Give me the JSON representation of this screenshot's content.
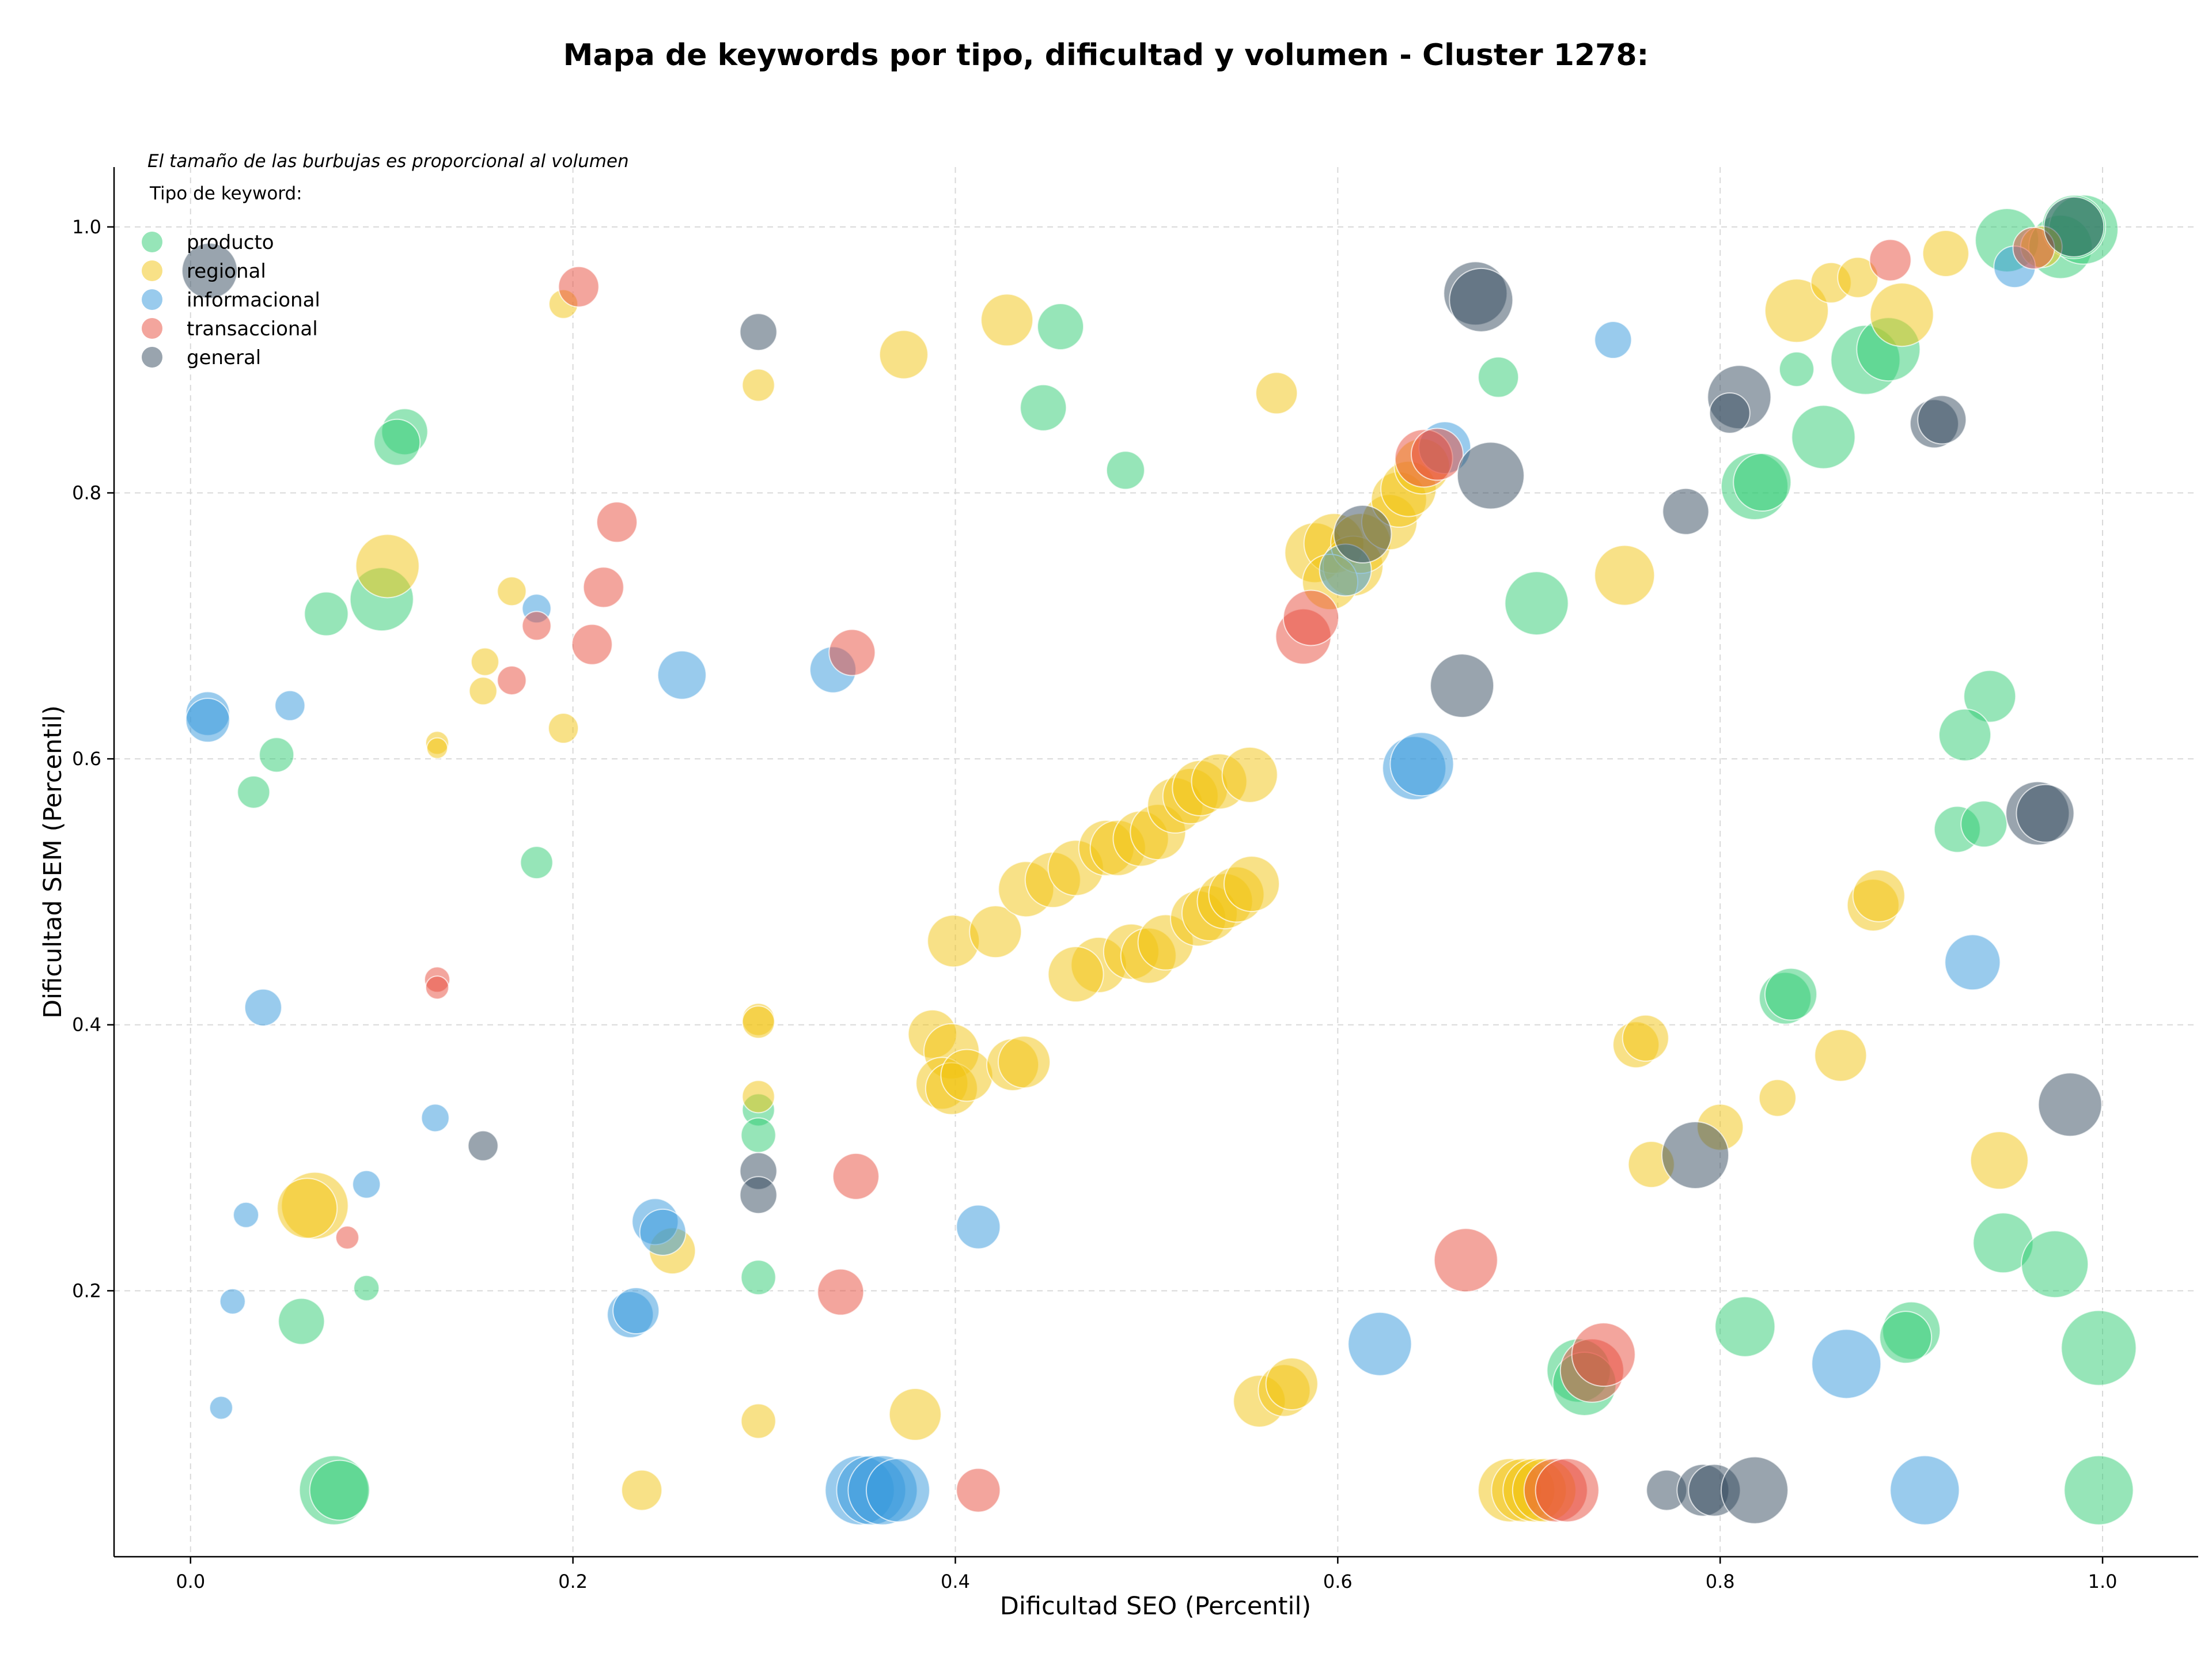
{
  "chart_data": {
    "type": "scatter",
    "title": "Mapa de keywords por tipo, dificultad y volumen - Cluster 1278:",
    "xlabel": "Dificultad SEO (Percentil)",
    "ylabel": "Dificultad SEM (Percentil)",
    "xlim": [
      -0.04,
      1.05
    ],
    "ylim": [
      0.0,
      1.045
    ],
    "xticks": [
      "0.0",
      "0.2",
      "0.4",
      "0.6",
      "0.8",
      "1.0"
    ],
    "yticks": [
      "0.2",
      "0.4",
      "0.6",
      "0.8",
      "1.0"
    ],
    "grid": true,
    "size_note": "El tamaño de las burbujas es proporcional al volumen",
    "legend_title": "Tipo de keyword:",
    "legend_position": "top-left",
    "series": [
      {
        "name": "producto",
        "color": "#2ecc71",
        "points": [
          [
            0.112,
            0.846,
            40
          ],
          [
            0.108,
            0.838,
            40
          ],
          [
            0.071,
            0.709,
            38
          ],
          [
            0.1,
            0.72,
            55
          ],
          [
            0.045,
            0.603,
            30
          ],
          [
            0.033,
            0.575,
            28
          ],
          [
            0.181,
            0.522,
            28
          ],
          [
            0.092,
            0.202,
            22
          ],
          [
            0.058,
            0.177,
            40
          ],
          [
            0.075,
            0.05,
            60
          ],
          [
            0.078,
            0.05,
            52
          ],
          [
            0.455,
            0.925,
            40
          ],
          [
            0.446,
            0.864,
            40
          ],
          [
            0.489,
            0.817,
            33
          ],
          [
            0.297,
            0.336,
            28
          ],
          [
            0.297,
            0.317,
            30
          ],
          [
            0.297,
            0.21,
            30
          ],
          [
            0.684,
            0.887,
            35
          ],
          [
            0.704,
            0.717,
            55
          ],
          [
            0.818,
            0.805,
            58
          ],
          [
            0.822,
            0.808,
            50
          ],
          [
            0.854,
            0.842,
            55
          ],
          [
            0.84,
            0.893,
            30
          ],
          [
            0.876,
            0.9,
            60
          ],
          [
            0.888,
            0.908,
            55
          ],
          [
            0.95,
            0.99,
            55
          ],
          [
            0.978,
            0.985,
            55
          ],
          [
            0.99,
            0.998,
            60
          ],
          [
            0.985,
            1.0,
            55
          ],
          [
            0.941,
            0.647,
            45
          ],
          [
            0.928,
            0.618,
            45
          ],
          [
            0.924,
            0.547,
            40
          ],
          [
            0.938,
            0.551,
            40
          ],
          [
            0.834,
            0.42,
            45
          ],
          [
            0.837,
            0.423,
            45
          ],
          [
            0.948,
            0.236,
            52
          ],
          [
            0.975,
            0.22,
            58
          ],
          [
            0.998,
            0.157,
            65
          ],
          [
            0.813,
            0.173,
            52
          ],
          [
            0.9,
            0.17,
            50
          ],
          [
            0.897,
            0.165,
            45
          ],
          [
            0.726,
            0.14,
            55
          ],
          [
            0.729,
            0.13,
            55
          ],
          [
            0.998,
            0.05,
            60
          ]
        ]
      },
      {
        "name": "regional",
        "color": "#f1c40f",
        "points": [
          [
            0.195,
            0.942,
            25
          ],
          [
            0.103,
            0.745,
            55
          ],
          [
            0.168,
            0.726,
            25
          ],
          [
            0.154,
            0.673,
            24
          ],
          [
            0.153,
            0.651,
            24
          ],
          [
            0.195,
            0.623,
            26
          ],
          [
            0.129,
            0.612,
            20
          ],
          [
            0.129,
            0.608,
            18
          ],
          [
            0.065,
            0.264,
            58
          ],
          [
            0.061,
            0.262,
            52
          ],
          [
            0.252,
            0.23,
            40
          ],
          [
            0.236,
            0.05,
            35
          ],
          [
            0.297,
            0.881,
            28
          ],
          [
            0.297,
            0.404,
            28
          ],
          [
            0.297,
            0.402,
            28
          ],
          [
            0.297,
            0.346,
            28
          ],
          [
            0.297,
            0.102,
            30
          ],
          [
            0.373,
            0.904,
            42
          ],
          [
            0.427,
            0.93,
            45
          ],
          [
            0.379,
            0.107,
            45
          ],
          [
            0.568,
            0.875,
            36
          ],
          [
            0.399,
            0.463,
            45
          ],
          [
            0.421,
            0.47,
            45
          ],
          [
            0.437,
            0.502,
            48
          ],
          [
            0.451,
            0.509,
            48
          ],
          [
            0.463,
            0.518,
            48
          ],
          [
            0.479,
            0.533,
            48
          ],
          [
            0.485,
            0.533,
            48
          ],
          [
            0.497,
            0.54,
            48
          ],
          [
            0.506,
            0.545,
            48
          ],
          [
            0.515,
            0.565,
            48
          ],
          [
            0.523,
            0.572,
            48
          ],
          [
            0.528,
            0.578,
            48
          ],
          [
            0.538,
            0.583,
            48
          ],
          [
            0.554,
            0.588,
            48
          ],
          [
            0.475,
            0.445,
            48
          ],
          [
            0.463,
            0.438,
            48
          ],
          [
            0.492,
            0.455,
            48
          ],
          [
            0.501,
            0.452,
            48
          ],
          [
            0.51,
            0.462,
            48
          ],
          [
            0.527,
            0.48,
            48
          ],
          [
            0.533,
            0.484,
            48
          ],
          [
            0.541,
            0.493,
            48
          ],
          [
            0.547,
            0.498,
            48
          ],
          [
            0.555,
            0.506,
            48
          ],
          [
            0.388,
            0.393,
            42
          ],
          [
            0.398,
            0.38,
            48
          ],
          [
            0.393,
            0.356,
            45
          ],
          [
            0.398,
            0.352,
            45
          ],
          [
            0.406,
            0.362,
            45
          ],
          [
            0.43,
            0.37,
            45
          ],
          [
            0.436,
            0.372,
            45
          ],
          [
            0.588,
            0.755,
            52
          ],
          [
            0.598,
            0.762,
            52
          ],
          [
            0.608,
            0.745,
            52
          ],
          [
            0.612,
            0.762,
            52
          ],
          [
            0.627,
            0.778,
            48
          ],
          [
            0.632,
            0.795,
            48
          ],
          [
            0.637,
            0.803,
            48
          ],
          [
            0.644,
            0.82,
            48
          ],
          [
            0.596,
            0.733,
            48
          ],
          [
            0.75,
            0.738,
            52
          ],
          [
            0.559,
            0.117,
            45
          ],
          [
            0.572,
            0.125,
            45
          ],
          [
            0.576,
            0.13,
            45
          ],
          [
            0.84,
            0.937,
            55
          ],
          [
            0.858,
            0.958,
            35
          ],
          [
            0.872,
            0.962,
            35
          ],
          [
            0.895,
            0.934,
            55
          ],
          [
            0.918,
            0.98,
            40
          ],
          [
            0.968,
            0.985,
            36
          ],
          [
            0.756,
            0.385,
            40
          ],
          [
            0.761,
            0.39,
            40
          ],
          [
            0.764,
            0.295,
            40
          ],
          [
            0.8,
            0.323,
            40
          ],
          [
            0.83,
            0.345,
            32
          ],
          [
            0.863,
            0.377,
            45
          ],
          [
            0.88,
            0.49,
            45
          ],
          [
            0.883,
            0.497,
            45
          ],
          [
            0.946,
            0.298,
            50
          ],
          [
            0.69,
            0.05,
            55
          ],
          [
            0.697,
            0.05,
            55
          ],
          [
            0.703,
            0.05,
            55
          ],
          [
            0.708,
            0.05,
            55
          ]
        ]
      },
      {
        "name": "informacional",
        "color": "#3498db",
        "points": [
          [
            0.009,
            0.634,
            38
          ],
          [
            0.009,
            0.629,
            38
          ],
          [
            0.052,
            0.64,
            26
          ],
          [
            0.038,
            0.413,
            32
          ],
          [
            0.181,
            0.713,
            25
          ],
          [
            0.128,
            0.33,
            24
          ],
          [
            0.092,
            0.28,
            24
          ],
          [
            0.029,
            0.257,
            22
          ],
          [
            0.022,
            0.192,
            22
          ],
          [
            0.016,
            0.112,
            20
          ],
          [
            0.257,
            0.663,
            42
          ],
          [
            0.336,
            0.667,
            40
          ],
          [
            0.243,
            0.252,
            40
          ],
          [
            0.247,
            0.244,
            40
          ],
          [
            0.23,
            0.182,
            40
          ],
          [
            0.233,
            0.185,
            40
          ],
          [
            0.412,
            0.248,
            38
          ],
          [
            0.35,
            0.05,
            60
          ],
          [
            0.356,
            0.05,
            60
          ],
          [
            0.362,
            0.05,
            60
          ],
          [
            0.37,
            0.05,
            55
          ],
          [
            0.64,
            0.593,
            55
          ],
          [
            0.644,
            0.596,
            55
          ],
          [
            0.656,
            0.834,
            45
          ],
          [
            0.604,
            0.742,
            45
          ],
          [
            0.622,
            0.16,
            55
          ],
          [
            0.744,
            0.915,
            32
          ],
          [
            0.954,
            0.97,
            36
          ],
          [
            0.932,
            0.447,
            48
          ],
          [
            0.866,
            0.145,
            60
          ],
          [
            0.907,
            0.05,
            60
          ]
        ]
      },
      {
        "name": "transaccional",
        "color": "#e74c3c",
        "points": [
          [
            0.203,
            0.955,
            35
          ],
          [
            0.223,
            0.778,
            35
          ],
          [
            0.216,
            0.729,
            35
          ],
          [
            0.21,
            0.686,
            35
          ],
          [
            0.181,
            0.7,
            25
          ],
          [
            0.168,
            0.659,
            25
          ],
          [
            0.129,
            0.434,
            22
          ],
          [
            0.129,
            0.428,
            20
          ],
          [
            0.082,
            0.24,
            20
          ],
          [
            0.346,
            0.68,
            40
          ],
          [
            0.348,
            0.286,
            40
          ],
          [
            0.34,
            0.199,
            40
          ],
          [
            0.412,
            0.05,
            38
          ],
          [
            0.582,
            0.692,
            48
          ],
          [
            0.586,
            0.706,
            48
          ],
          [
            0.645,
            0.826,
            50
          ],
          [
            0.652,
            0.829,
            45
          ],
          [
            0.667,
            0.223,
            55
          ],
          [
            0.714,
            0.05,
            55
          ],
          [
            0.72,
            0.05,
            55
          ],
          [
            0.733,
            0.14,
            55
          ],
          [
            0.739,
            0.152,
            55
          ],
          [
            0.889,
            0.975,
            36
          ],
          [
            0.964,
            0.984,
            36
          ]
        ]
      },
      {
        "name": "general",
        "color": "#34495e",
        "points": [
          [
            0.01,
            0.967,
            48
          ],
          [
            0.153,
            0.309,
            26
          ],
          [
            0.297,
            0.921,
            32
          ],
          [
            0.297,
            0.29,
            32
          ],
          [
            0.297,
            0.272,
            32
          ],
          [
            0.665,
            0.655,
            55
          ],
          [
            0.672,
            0.95,
            55
          ],
          [
            0.675,
            0.945,
            55
          ],
          [
            0.68,
            0.813,
            58
          ],
          [
            0.613,
            0.769,
            50
          ],
          [
            0.782,
            0.786,
            40
          ],
          [
            0.81,
            0.872,
            55
          ],
          [
            0.805,
            0.86,
            35
          ],
          [
            0.912,
            0.852,
            42
          ],
          [
            0.916,
            0.855,
            42
          ],
          [
            0.966,
            0.559,
            55
          ],
          [
            0.97,
            0.559,
            50
          ],
          [
            0.983,
            0.34,
            55
          ],
          [
            0.787,
            0.302,
            58
          ],
          [
            0.772,
            0.05,
            35
          ],
          [
            0.791,
            0.05,
            45
          ],
          [
            0.797,
            0.05,
            45
          ],
          [
            0.818,
            0.05,
            58
          ],
          [
            0.985,
            1.0,
            52
          ]
        ]
      }
    ]
  }
}
